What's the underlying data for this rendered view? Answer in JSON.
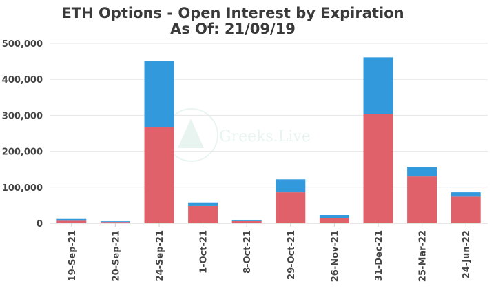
{
  "chart_data": {
    "type": "bar",
    "stacked": true,
    "title": "ETH Options - Open Interest by Expiration",
    "subtitle": "As Of: 21/09/19",
    "xlabel": "",
    "ylabel": "",
    "categories": [
      "19-Sep-21",
      "20-Sep-21",
      "24-Sep-21",
      "1-Oct-21",
      "8-Oct-21",
      "29-Oct-21",
      "26-Nov-21",
      "31-Dec-21",
      "25-Mar-22",
      "24-Jun-22"
    ],
    "series": [
      {
        "color": "#e0616a",
        "values": [
          7000,
          3500,
          268000,
          48000,
          6000,
          86000,
          14000,
          304000,
          130000,
          74000
        ]
      },
      {
        "color": "#3399dd",
        "values": [
          5000,
          2000,
          184000,
          10000,
          2000,
          36000,
          9000,
          157000,
          27000,
          12000
        ]
      }
    ],
    "ylim": [
      0,
      500000
    ],
    "yticks": [
      0,
      100000,
      200000,
      300000,
      400000,
      500000
    ],
    "ytick_labels": [
      "0",
      "100,000",
      "200,000",
      "300,000",
      "400,000",
      "500,000"
    ],
    "grid": true,
    "legend": "none",
    "watermark": "Greeks.Live"
  }
}
